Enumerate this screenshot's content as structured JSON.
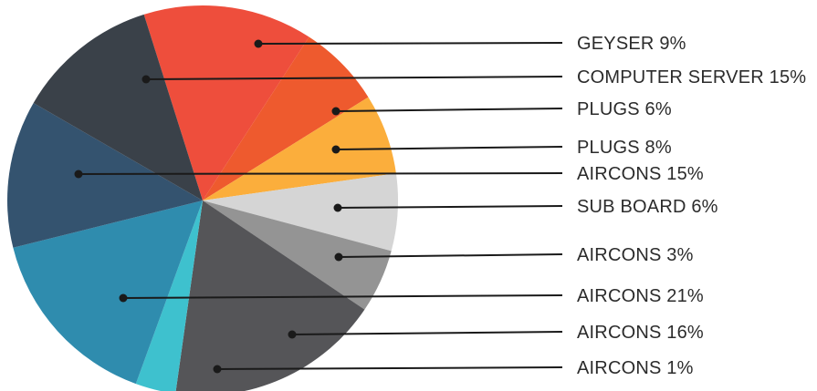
{
  "chart_data": {
    "type": "pie",
    "title": "",
    "slices": [
      {
        "label": "GEYSER 9%",
        "value": 9,
        "color": "#EE4E3C"
      },
      {
        "label": "COMPUTER SERVER 15%",
        "value": 15,
        "color": "#3A4149"
      },
      {
        "label": "PLUGS 6%",
        "value": 6,
        "color": "#EE5A2E"
      },
      {
        "label": "PLUGS 8%",
        "value": 8,
        "color": "#FBAE3C"
      },
      {
        "label": "AIRCONS 15%",
        "value": 15,
        "color": "#34536F"
      },
      {
        "label": "SUB BOARD 6%",
        "value": 6,
        "color": "#D5D5D5"
      },
      {
        "label": "AIRCONS 3%",
        "value": 3,
        "color": "#949494"
      },
      {
        "label": "AIRCONS 21%",
        "value": 21,
        "color": "#2F8CAE"
      },
      {
        "label": "AIRCONS 16%",
        "value": 16,
        "color": "#555558"
      },
      {
        "label": "AIRCONS 1%",
        "value": 1,
        "color": "#3EC1CE"
      }
    ],
    "legend_position": "right"
  }
}
